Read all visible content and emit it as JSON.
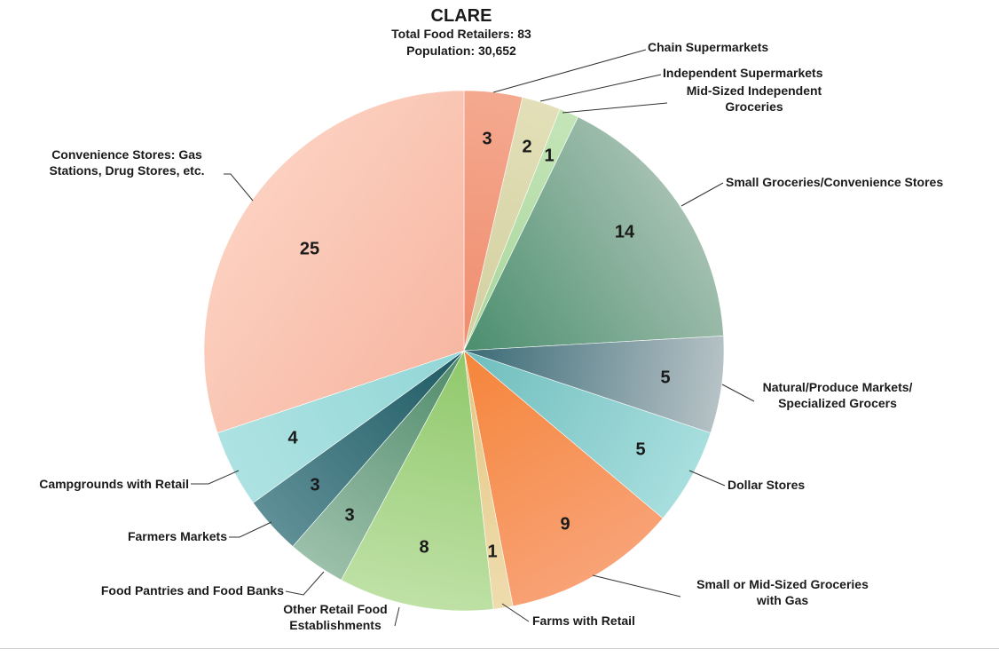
{
  "chart_data": {
    "type": "pie",
    "title": "CLARE",
    "subtitle_lines": [
      "Total Food Retailers: 83",
      "Population: 30,652"
    ],
    "slices": [
      {
        "label": "Chain Supermarkets",
        "value": 3,
        "value_label": "3",
        "color": "#f08c6e",
        "color2": "#f4a98f"
      },
      {
        "label": "Independent Supermarkets",
        "value": 2,
        "value_label": "2",
        "color": "#d2cfa0",
        "color2": "#e3dfb8"
      },
      {
        "label": "Mid-Sized Independent Groceries",
        "value": 1,
        "value_label": "1",
        "color": "#a7d59a",
        "color2": "#c4e5b8"
      },
      {
        "label": "Small Groceries/Convenience Stores",
        "value": 14,
        "value_label": "14",
        "color": "#4b8e6e",
        "color2": "#a4c0b0"
      },
      {
        "label": "Natural/Produce Markets/ Specialized Grocers",
        "value": 5,
        "value_label": "5",
        "color": "#3a6a76",
        "color2": "#b6c2c6"
      },
      {
        "label": "Dollar Stores",
        "value": 5,
        "value_label": "5",
        "color": "#6fbdbd",
        "color2": "#a8dede"
      },
      {
        "label": "Small or Mid-Sized Groceries with Gas",
        "value": 9,
        "value_label": "9",
        "color": "#f5853a",
        "color2": "#f8a276"
      },
      {
        "label": "Farms with Retail",
        "value": 1,
        "value_label": "1",
        "color": "#e3c681",
        "color2": "#efdcae"
      },
      {
        "label": "Other Retail Food Establishments",
        "value": 8,
        "value_label": "8",
        "color": "#8fc86a",
        "color2": "#bfe1a6"
      },
      {
        "label": "Food Pantries and Food Banks",
        "value": 3,
        "value_label": "3",
        "color": "#4f8a6a",
        "color2": "#9cc0aa"
      },
      {
        "label": "Farmers Markets",
        "value": 3,
        "value_label": "3",
        "color": "#1e5a63",
        "color2": "#5f8f97"
      },
      {
        "label": "Campgrounds with Retail",
        "value": 4,
        "value_label": "4",
        "color": "#92d6d6",
        "color2": "#aee2e2"
      },
      {
        "label": "Convenience Stores: Gas Stations, Drug Stores, etc.",
        "value": 25,
        "value_label": "25",
        "color": "#f7b7a2",
        "color2": "#fcd0c0"
      }
    ],
    "start_angle_deg": 0,
    "direction": "clockwise",
    "label_color": "#1a1a1a",
    "leader_color": "#333333"
  }
}
